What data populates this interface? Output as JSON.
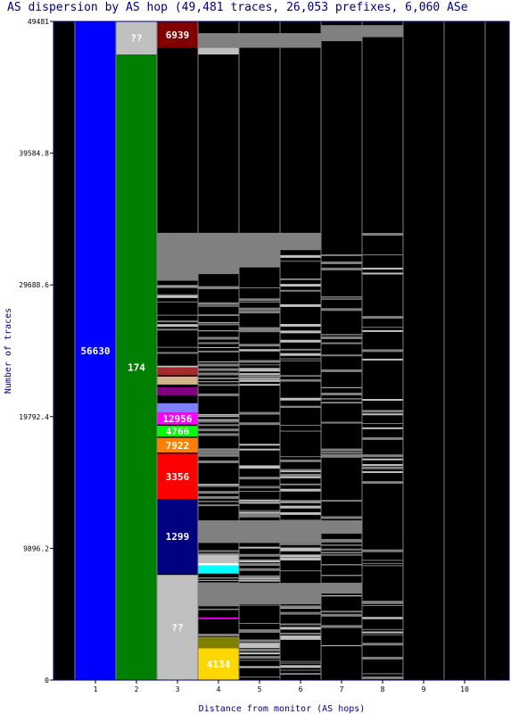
{
  "chart_data": {
    "type": "bar",
    "title": "AS dispersion by AS hop (49,481 traces, 26,053 prefixes, 6,060 ASe",
    "xlabel": "Distance from monitor (AS hops)",
    "ylabel": "Number of traces",
    "ylim": [
      0,
      49481
    ],
    "yticks": [
      "0",
      "9896.2",
      "19792.4",
      "29688.6",
      "39584.8",
      "49481"
    ],
    "categories": [
      "1",
      "2",
      "3",
      "4",
      "5",
      "6",
      "7",
      "8",
      "9",
      "10"
    ],
    "colors": {
      "background": "#000000",
      "other": "#808080",
      "unknown": "#c0c0c0",
      "blue": "#0000ff",
      "green": "#008000",
      "maroon": "#800000",
      "navy": "#000080",
      "red": "#ff0000",
      "orange": "#ff8000",
      "lime": "#00ff00",
      "magenta": "#ff00ff",
      "cyan": "#00ffff",
      "olive": "#808000",
      "gold": "#ffd700",
      "purple": "#800080",
      "tan": "#d2b48c",
      "brown": "#a52a2a",
      "periwinkle": "#8080ff"
    },
    "columns": [
      {
        "hop": "1",
        "segments": [
          {
            "label": "56630",
            "y0": 0,
            "y1": 49481,
            "color": "#0000ff"
          }
        ]
      },
      {
        "hop": "2",
        "segments": [
          {
            "label": "174",
            "y0": 0,
            "y1": 47000,
            "color": "#008000"
          },
          {
            "label": "??",
            "y0": 47000,
            "y1": 49481,
            "color": "#c0c0c0"
          }
        ]
      },
      {
        "hop": "3",
        "segments": [
          {
            "label": "??",
            "y0": 0,
            "y1": 7900,
            "color": "#c0c0c0"
          },
          {
            "label": "1299",
            "y0": 8000,
            "y1": 13600,
            "color": "#000080"
          },
          {
            "label": "3356",
            "y0": 13600,
            "y1": 17000,
            "color": "#ff0000"
          },
          {
            "label": "7922",
            "y0": 17100,
            "y1": 18200,
            "color": "#ff8000"
          },
          {
            "label": "4766",
            "y0": 18300,
            "y1": 19100,
            "color": "#00ff00"
          },
          {
            "label": "12956",
            "y0": 19200,
            "y1": 20100,
            "color": "#ff00ff"
          },
          {
            "label": "",
            "y0": 20100,
            "y1": 20800,
            "color": "#8080ff"
          },
          {
            "label": "",
            "y0": 21400,
            "y1": 22000,
            "color": "#800080"
          },
          {
            "label": "",
            "y0": 22200,
            "y1": 22800,
            "color": "#d2b48c"
          },
          {
            "label": "",
            "y0": 22900,
            "y1": 23500,
            "color": "#a52a2a"
          },
          {
            "label": "",
            "y0": 30000,
            "y1": 33600,
            "color": "#808080"
          },
          {
            "label": "6939",
            "y0": 47500,
            "y1": 49481,
            "color": "#800000"
          }
        ]
      },
      {
        "hop": "4",
        "segments": [
          {
            "label": "4134",
            "y0": 0,
            "y1": 2400,
            "color": "#ffd700"
          },
          {
            "label": "",
            "y0": 2400,
            "y1": 3200,
            "color": "#808000"
          },
          {
            "label": "",
            "y0": 4600,
            "y1": 4700,
            "color": "#ff00ff"
          },
          {
            "label": "",
            "y0": 5700,
            "y1": 7300,
            "color": "#808080"
          },
          {
            "label": "",
            "y0": 8000,
            "y1": 8600,
            "color": "#00ffff"
          },
          {
            "label": "",
            "y0": 8600,
            "y1": 8800,
            "color": "#ffffff"
          },
          {
            "label": "",
            "y0": 8800,
            "y1": 9400,
            "color": "#c0c0c0"
          },
          {
            "label": "",
            "y0": 10300,
            "y1": 12000,
            "color": "#808080"
          },
          {
            "label": "",
            "y0": 30500,
            "y1": 33600,
            "color": "#808080"
          },
          {
            "label": "",
            "y0": 47000,
            "y1": 47500,
            "color": "#c0c0c0"
          },
          {
            "label": "",
            "y0": 47500,
            "y1": 48600,
            "color": "#808080"
          }
        ]
      },
      {
        "hop": "5",
        "segments": [
          {
            "label": "",
            "y0": 2400,
            "y1": 2800,
            "color": "#c0c0c0"
          },
          {
            "label": "",
            "y0": 5700,
            "y1": 7300,
            "color": "#808080"
          },
          {
            "label": "",
            "y0": 10300,
            "y1": 12000,
            "color": "#808080"
          },
          {
            "label": "",
            "y0": 31000,
            "y1": 33600,
            "color": "#808080"
          },
          {
            "label": "",
            "y0": 47500,
            "y1": 48600,
            "color": "#808080"
          }
        ]
      },
      {
        "hop": "6",
        "segments": [
          {
            "label": "",
            "y0": 5700,
            "y1": 7300,
            "color": "#808080"
          },
          {
            "label": "",
            "y0": 10300,
            "y1": 12000,
            "color": "#808080"
          },
          {
            "label": "",
            "y0": 32300,
            "y1": 33600,
            "color": "#808080"
          },
          {
            "label": "",
            "y0": 47500,
            "y1": 48600,
            "color": "#808080"
          }
        ]
      },
      {
        "hop": "7",
        "segments": [
          {
            "label": "",
            "y0": 6500,
            "y1": 7300,
            "color": "#808080"
          },
          {
            "label": "",
            "y0": 11000,
            "y1": 12000,
            "color": "#808080"
          },
          {
            "label": "",
            "y0": 48000,
            "y1": 49200,
            "color": "#808080"
          }
        ]
      },
      {
        "hop": "8",
        "segments": [
          {
            "label": "",
            "y0": 48300,
            "y1": 49200,
            "color": "#808080"
          }
        ]
      },
      {
        "hop": "9",
        "segments": []
      },
      {
        "hop": "10",
        "segments": []
      }
    ]
  }
}
